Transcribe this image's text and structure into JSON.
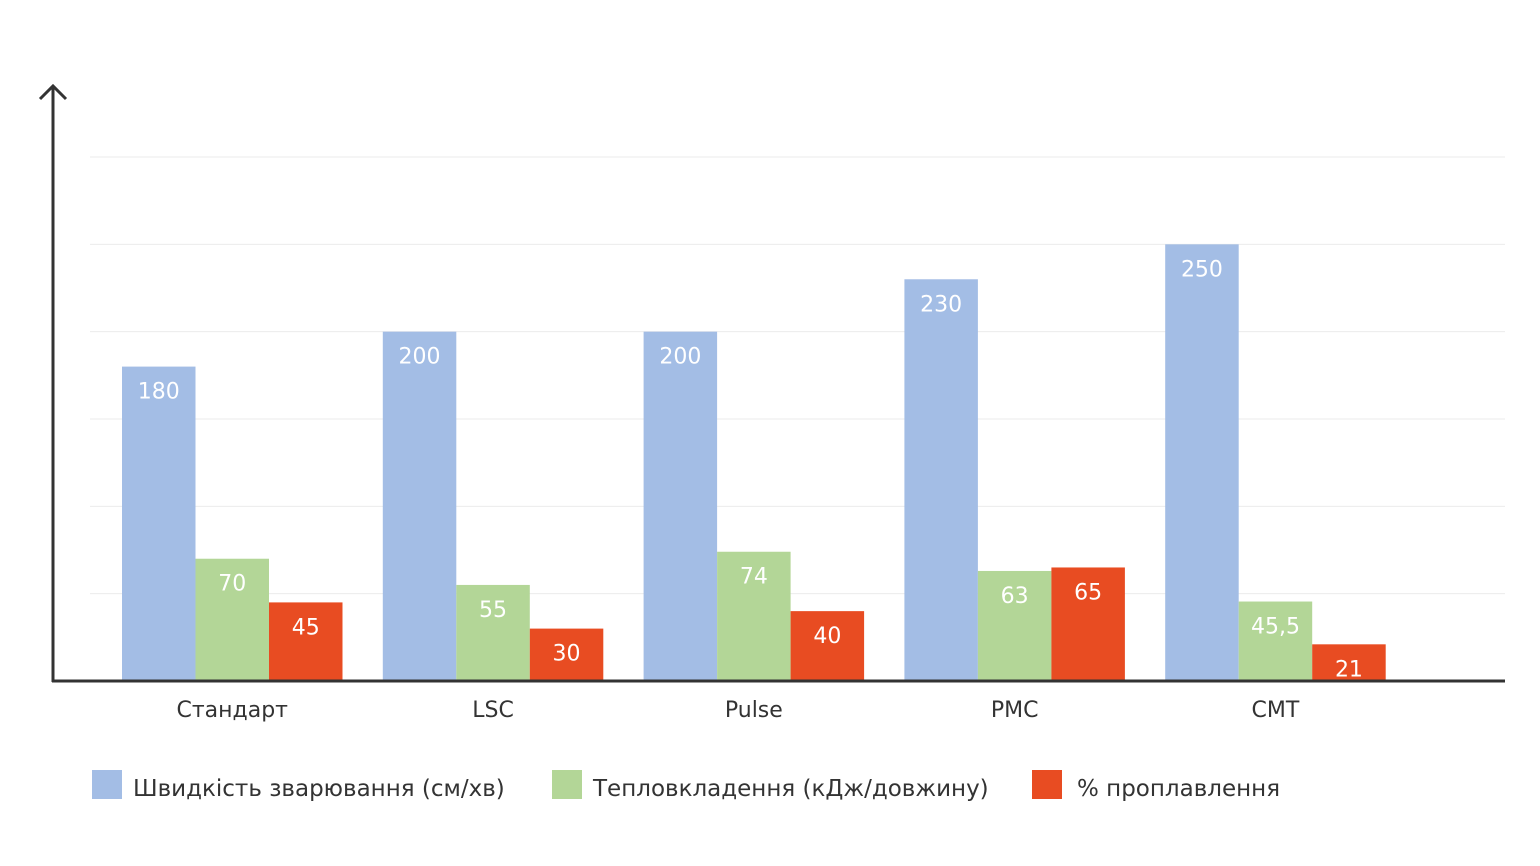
{
  "chart_data": {
    "type": "bar",
    "title": "",
    "xlabel": "",
    "ylabel": "",
    "ylim": [
      0,
      300
    ],
    "grid": true,
    "grid_step": 50,
    "legend_position": "bottom",
    "categories": [
      "Стандарт",
      "LSC",
      "Pulse",
      "PMC",
      "CMT"
    ],
    "series": [
      {
        "name": "Швидкість зварювання (см/хв)",
        "color": "#a3bde5",
        "values": [
          180,
          200,
          200,
          230,
          250
        ],
        "labels": [
          "180",
          "200",
          "200",
          "230",
          "250"
        ]
      },
      {
        "name": "Тепловкладення (кДж/довжину)",
        "color": "#b3d697",
        "values": [
          70,
          55,
          74,
          63,
          45.5
        ],
        "labels": [
          "70",
          "55",
          "74",
          "63",
          "45,5"
        ]
      },
      {
        "name": "% проплавлення",
        "color": "#e84c22",
        "values": [
          45,
          30,
          40,
          65,
          21
        ],
        "labels": [
          "45",
          "30",
          "40",
          "65",
          "21"
        ]
      }
    ]
  }
}
